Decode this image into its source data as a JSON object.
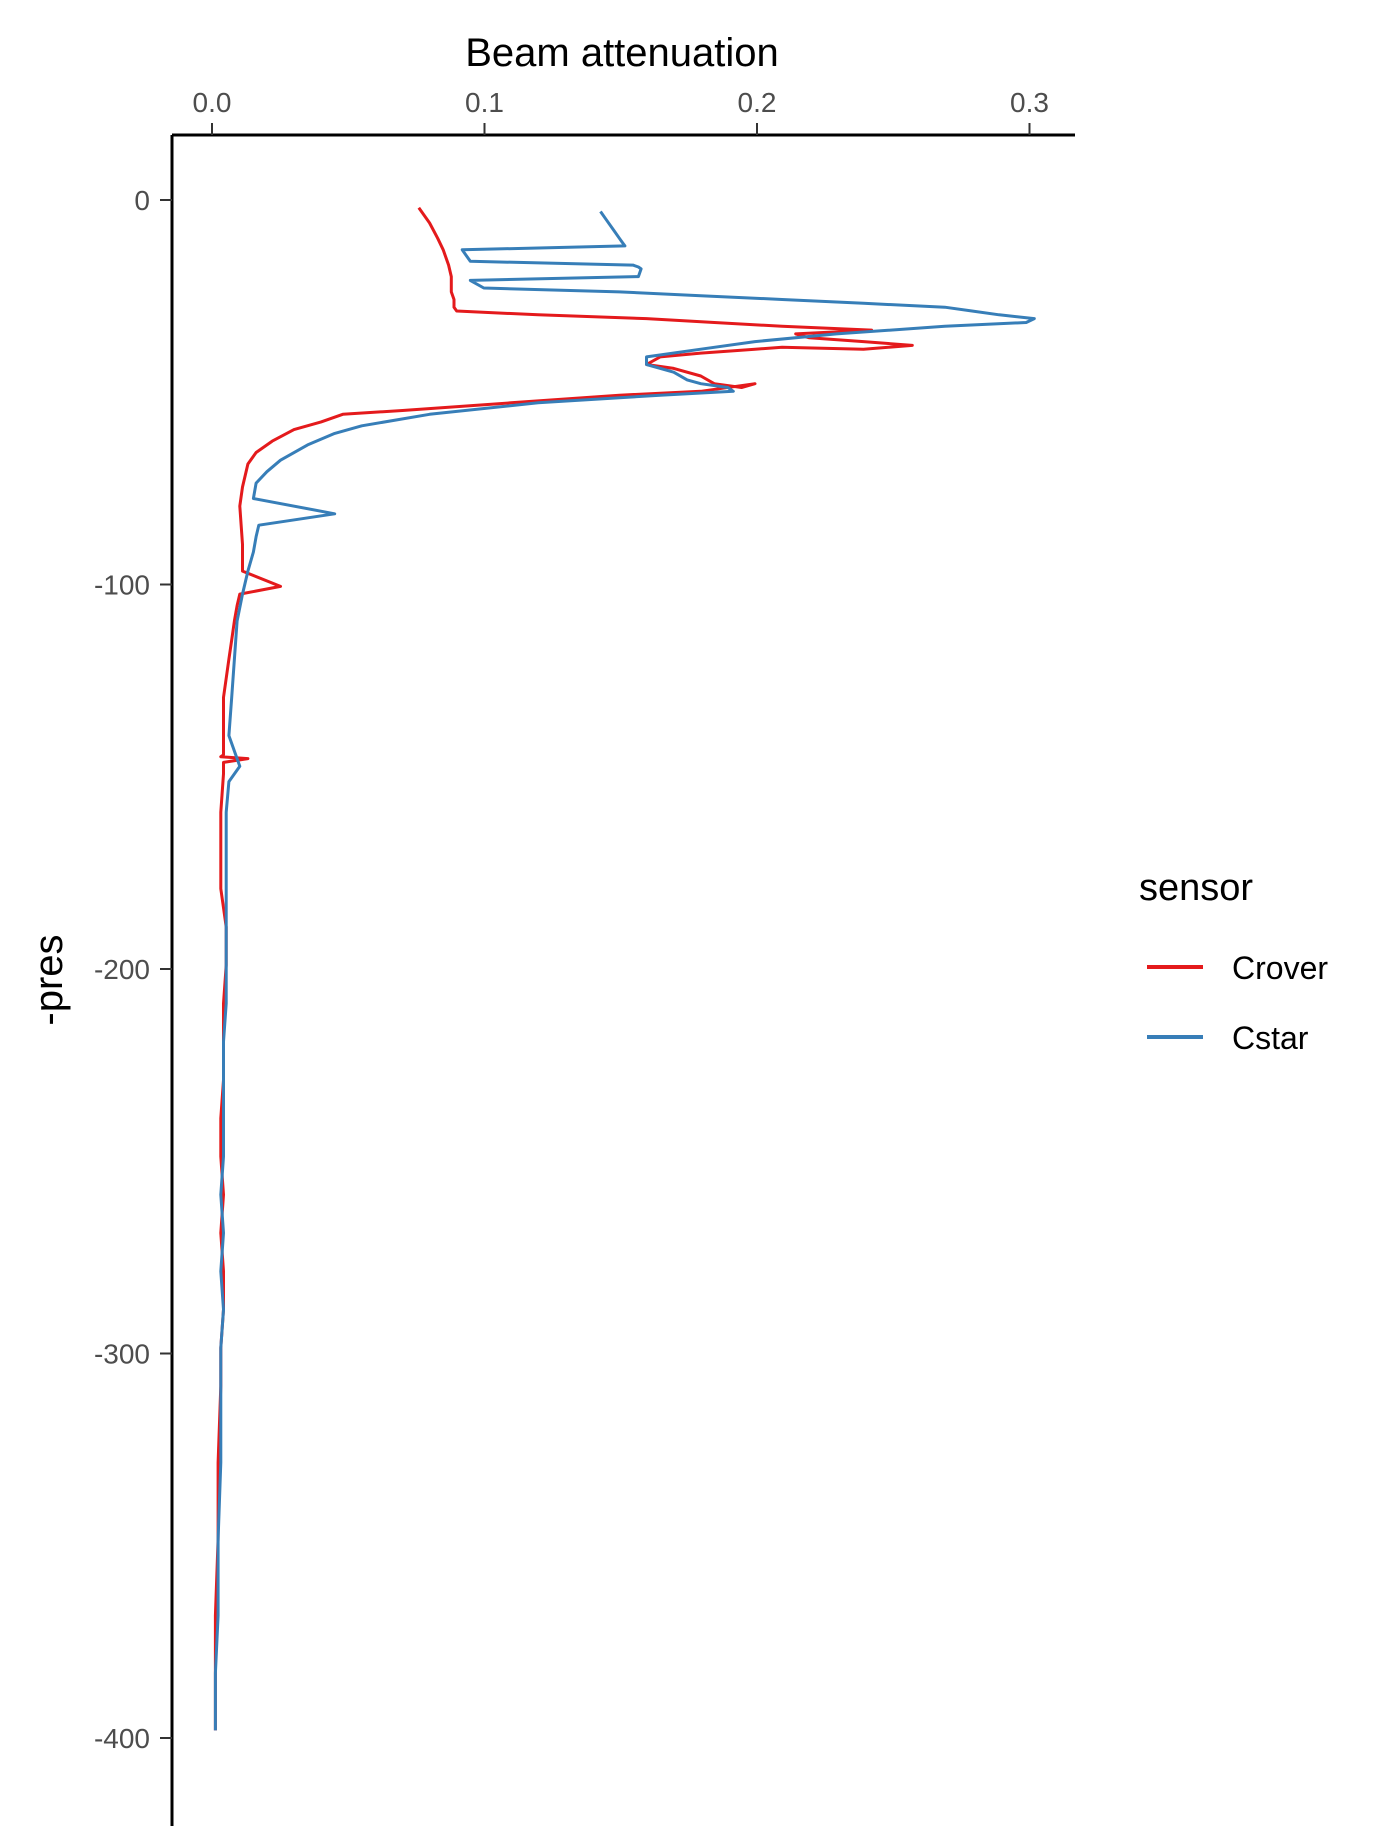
{
  "chart_data": {
    "type": "line",
    "title": "",
    "xlabel": "Beam attenuation",
    "ylabel": "-pres",
    "xlim": [
      -0.015,
      0.318
    ],
    "ylim": [
      -425,
      17
    ],
    "x_ticks": [
      "0.0",
      "0.1",
      "0.2",
      "0.3"
    ],
    "y_ticks": [
      "0",
      "-100",
      "-200",
      "-300",
      "-400"
    ],
    "x_axis_position": "top",
    "grid": false,
    "legend": {
      "title": "sensor",
      "placement": "right"
    },
    "series": [
      {
        "name": "Crover",
        "color": "#e41a1c",
        "x": [
          0.076,
          0.08,
          0.083,
          0.085,
          0.087,
          0.088,
          0.088,
          0.089,
          0.089,
          0.09,
          0.12,
          0.16,
          0.185,
          0.21,
          0.243,
          0.215,
          0.22,
          0.24,
          0.258,
          0.24,
          0.21,
          0.2,
          0.18,
          0.165,
          0.16,
          0.17,
          0.18,
          0.185,
          0.195,
          0.2,
          0.18,
          0.15,
          0.11,
          0.07,
          0.048,
          0.04,
          0.03,
          0.022,
          0.016,
          0.013,
          0.012,
          0.011,
          0.01,
          0.011,
          0.011,
          0.025,
          0.01,
          0.009,
          0.008,
          0.007,
          0.006,
          0.005,
          0.004,
          0.004,
          0.004,
          0.004,
          0.003,
          0.013,
          0.004,
          0.004,
          0.003,
          0.003,
          0.003,
          0.004,
          0.005,
          0.005,
          0.004,
          0.004,
          0.004,
          0.003,
          0.003,
          0.004,
          0.003,
          0.004,
          0.004,
          0.003,
          0.003,
          0.002,
          0.002,
          0.001,
          0.001,
          0.001
        ],
        "y": [
          -2,
          -6,
          -10,
          -13,
          -17,
          -20,
          -24,
          -26,
          -28,
          -29,
          -30,
          -31,
          -32,
          -33,
          -34,
          -35,
          -36,
          -37,
          -38,
          -39,
          -38.5,
          -39,
          -40,
          -41,
          -43,
          -44,
          -46,
          -48,
          -49,
          -48,
          -50,
          -51,
          -53,
          -55,
          -56,
          -58,
          -60,
          -63,
          -66,
          -69,
          -72,
          -75,
          -80,
          -90,
          -97,
          -101,
          -103,
          -106,
          -110,
          -115,
          -120,
          -125,
          -130,
          -135,
          -140,
          -145,
          -145.5,
          -146,
          -147,
          -150,
          -160,
          -170,
          -180,
          -185,
          -190,
          -200,
          -210,
          -220,
          -230,
          -240,
          -250,
          -260,
          -270,
          -280,
          -290,
          -300,
          -310,
          -330,
          -350,
          -370,
          -390,
          -400
        ]
      },
      {
        "name": "Cstar",
        "color": "#377eb8",
        "x": [
          0.143,
          0.145,
          0.148,
          0.15,
          0.151,
          0.152,
          0.092,
          0.095,
          0.155,
          0.157,
          0.158,
          0.157,
          0.095,
          0.1,
          0.15,
          0.18,
          0.21,
          0.24,
          0.27,
          0.28,
          0.29,
          0.303,
          0.3,
          0.27,
          0.23,
          0.2,
          0.18,
          0.16,
          0.16,
          0.17,
          0.175,
          0.18,
          0.19,
          0.192,
          0.165,
          0.12,
          0.08,
          0.055,
          0.045,
          0.035,
          0.025,
          0.02,
          0.016,
          0.015,
          0.045,
          0.017,
          0.016,
          0.015,
          0.013,
          0.011,
          0.009,
          0.008,
          0.007,
          0.006,
          0.01,
          0.006,
          0.005,
          0.005,
          0.005,
          0.005,
          0.005,
          0.005,
          0.004,
          0.004,
          0.004,
          0.004,
          0.003,
          0.004,
          0.003,
          0.004,
          0.003,
          0.003,
          0.003,
          0.002,
          0.002,
          0.001,
          0.001,
          0.001
        ],
        "y": [
          -3,
          -5,
          -8,
          -10,
          -11,
          -12,
          -13,
          -16,
          -17,
          -17.5,
          -18,
          -20,
          -21,
          -23,
          -24,
          -25,
          -26,
          -27,
          -28,
          -29,
          -30,
          -31,
          -32,
          -33,
          -35,
          -37,
          -39,
          -41,
          -43,
          -45,
          -47,
          -48,
          -49,
          -50,
          -51,
          -53,
          -56,
          -59,
          -61,
          -64,
          -68,
          -71,
          -74,
          -78,
          -82,
          -85,
          -88,
          -92,
          -97,
          -103,
          -110,
          -120,
          -130,
          -140,
          -148,
          -152,
          -160,
          -170,
          -180,
          -190,
          -200,
          -210,
          -220,
          -230,
          -240,
          -250,
          -260,
          -270,
          -280,
          -290,
          -300,
          -310,
          -330,
          -350,
          -370,
          -385,
          -395,
          -400
        ]
      }
    ]
  }
}
